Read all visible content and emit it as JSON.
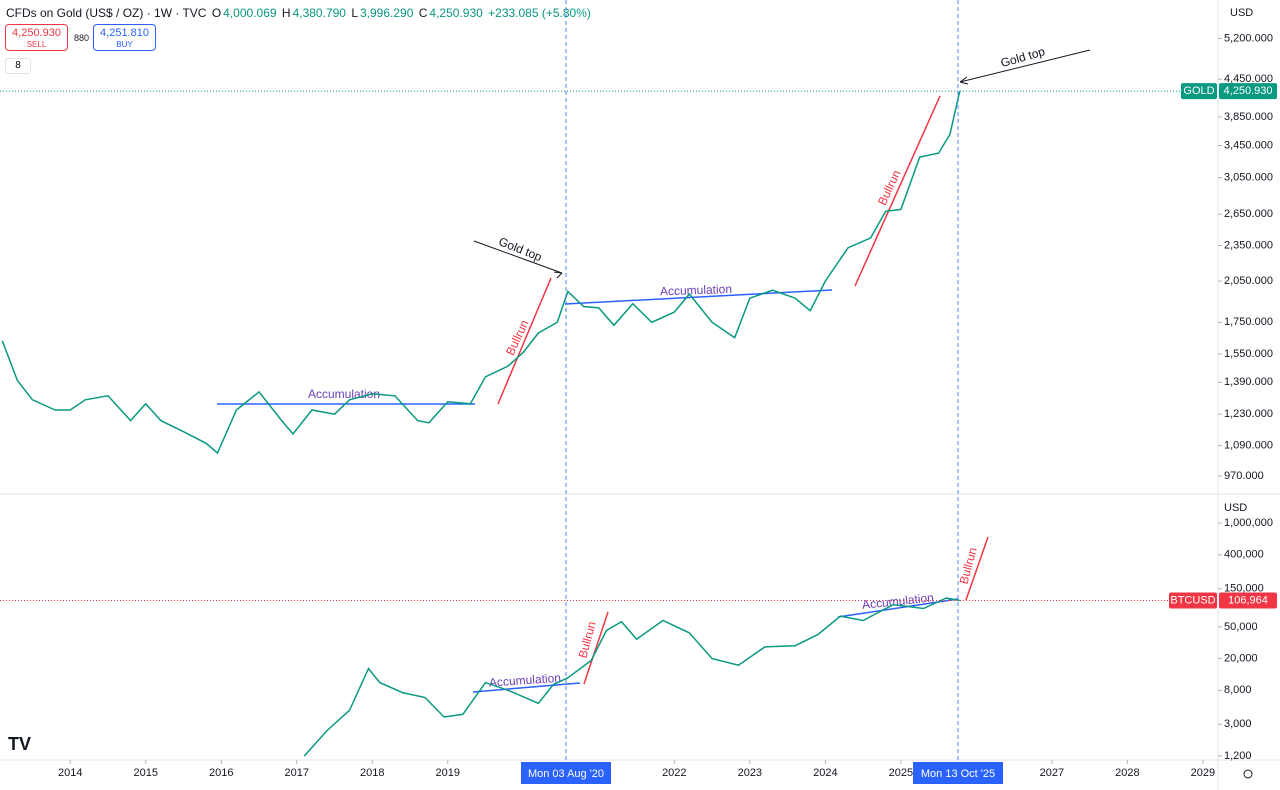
{
  "header": {
    "symbol": "CFDs on Gold (US$ / OZ) · 1W · TVC",
    "ohlc": [
      "O",
      "4,000.069",
      "H",
      "4,380.790",
      "L",
      "3,996.290",
      "C",
      "4,250.930",
      "+233.085 (+5.80%)"
    ],
    "sell_price": "4,250.930",
    "sell_label": "SELL",
    "spread": "880",
    "buy_price": "4,251.810",
    "buy_label": "BUY",
    "indicators": "8"
  },
  "currency": "USD",
  "crosshair_labels": [
    "Mon 03 Aug '20",
    "Mon 13 Oct '25"
  ],
  "chart_data": [
    {
      "type": "line",
      "log_scale": true,
      "annotations": [
        "Gold top",
        "Accumulation",
        "Bullrun",
        "Accumulation",
        "Bullrun",
        "Gold top"
      ],
      "price_tag": {
        "name": "GOLD",
        "label": "4,250.930"
      },
      "xlim": [
        2013.07,
        2029.2
      ],
      "xticks": [
        2014,
        2015,
        2016,
        2017,
        2018,
        2019,
        2022,
        2023,
        2024,
        2025,
        2027,
        2028,
        2029
      ],
      "ylim": [
        909,
        6030
      ],
      "yticks": [
        {
          "value": 5200,
          "label": "5,200.000"
        },
        {
          "value": 4450,
          "label": "4,450.000"
        },
        {
          "value": 3850,
          "label": "3,850.000"
        },
        {
          "value": 3450,
          "label": "3,450.000"
        },
        {
          "value": 3050,
          "label": "3,050.000"
        },
        {
          "value": 2650,
          "label": "2,650.000"
        },
        {
          "value": 2350,
          "label": "2,350.000"
        },
        {
          "value": 2050,
          "label": "2,050.000"
        },
        {
          "value": 1750,
          "label": "1,750.000"
        },
        {
          "value": 1550,
          "label": "1,550.000"
        },
        {
          "value": 1390,
          "label": "1,390.000"
        },
        {
          "value": 1230,
          "label": "1,230.000"
        },
        {
          "value": 1090,
          "label": "1,090.000"
        },
        {
          "value": 970,
          "label": "970.000"
        }
      ],
      "series": [
        {
          "color": "#089981",
          "x": [
            2013.1,
            2013.3,
            2013.5,
            2013.8,
            2014.0,
            2014.2,
            2014.5,
            2014.8,
            2015.0,
            2015.2,
            2015.5,
            2015.8,
            2015.95,
            2016.2,
            2016.5,
            2016.8,
            2016.95,
            2017.2,
            2017.5,
            2017.7,
            2018.0,
            2018.3,
            2018.6,
            2018.75,
            2019.0,
            2019.3,
            2019.5,
            2019.8,
            2020.0,
            2020.2,
            2020.45,
            2020.59,
            2020.8,
            2021.0,
            2021.2,
            2021.45,
            2021.7,
            2022.0,
            2022.2,
            2022.5,
            2022.8,
            2023.0,
            2023.3,
            2023.6,
            2023.8,
            2024.0,
            2024.3,
            2024.6,
            2024.8,
            2025.0,
            2025.25,
            2025.5,
            2025.65,
            2025.78
          ],
          "values": [
            1630,
            1400,
            1300,
            1250,
            1250,
            1300,
            1320,
            1200,
            1280,
            1200,
            1150,
            1100,
            1060,
            1250,
            1340,
            1200,
            1140,
            1250,
            1230,
            1300,
            1330,
            1320,
            1200,
            1190,
            1290,
            1280,
            1420,
            1480,
            1560,
            1680,
            1750,
            1970,
            1860,
            1850,
            1730,
            1880,
            1750,
            1820,
            1950,
            1750,
            1650,
            1920,
            1980,
            1920,
            1830,
            2050,
            2330,
            2420,
            2680,
            2700,
            3300,
            3350,
            3600,
            4251
          ]
        }
      ]
    },
    {
      "type": "line",
      "log_scale": true,
      "annotations": [
        "Accumulation",
        "Bullrun",
        "Accumulation",
        "Bullrun"
      ],
      "price_tag": {
        "name": "BTCUSD",
        "label": "106,964"
      },
      "xlim": [
        2013.07,
        2029.2
      ],
      "ylim": [
        1070,
        2250000
      ],
      "yticks": [
        {
          "value": 1000000,
          "label": "1,000,000"
        },
        {
          "value": 400000,
          "label": "400,000"
        },
        {
          "value": 150000,
          "label": "150,000"
        },
        {
          "value": 50000,
          "label": "50,000"
        },
        {
          "value": 20000,
          "label": "20,000"
        },
        {
          "value": 8000,
          "label": "8,000"
        },
        {
          "value": 3000,
          "label": "3,000"
        },
        {
          "value": 1200,
          "label": "1,200"
        }
      ],
      "series": [
        {
          "color": "#089981",
          "x": [
            2017.1,
            2017.4,
            2017.7,
            2017.95,
            2018.1,
            2018.4,
            2018.7,
            2018.95,
            2019.2,
            2019.5,
            2019.8,
            2020.2,
            2020.4,
            2020.59,
            2020.9,
            2021.1,
            2021.3,
            2021.5,
            2021.85,
            2022.2,
            2022.5,
            2022.85,
            2023.2,
            2023.6,
            2023.9,
            2024.2,
            2024.5,
            2024.9,
            2025.3,
            2025.6,
            2025.78
          ],
          "values": [
            1200,
            2500,
            4500,
            15000,
            10000,
            7500,
            6500,
            3700,
            4000,
            10000,
            8000,
            5500,
            9500,
            11500,
            19000,
            45000,
            58000,
            35000,
            60000,
            42000,
            20000,
            16500,
            28000,
            29000,
            40000,
            68000,
            60000,
            95000,
            85000,
            115000,
            106964
          ]
        }
      ]
    }
  ]
}
